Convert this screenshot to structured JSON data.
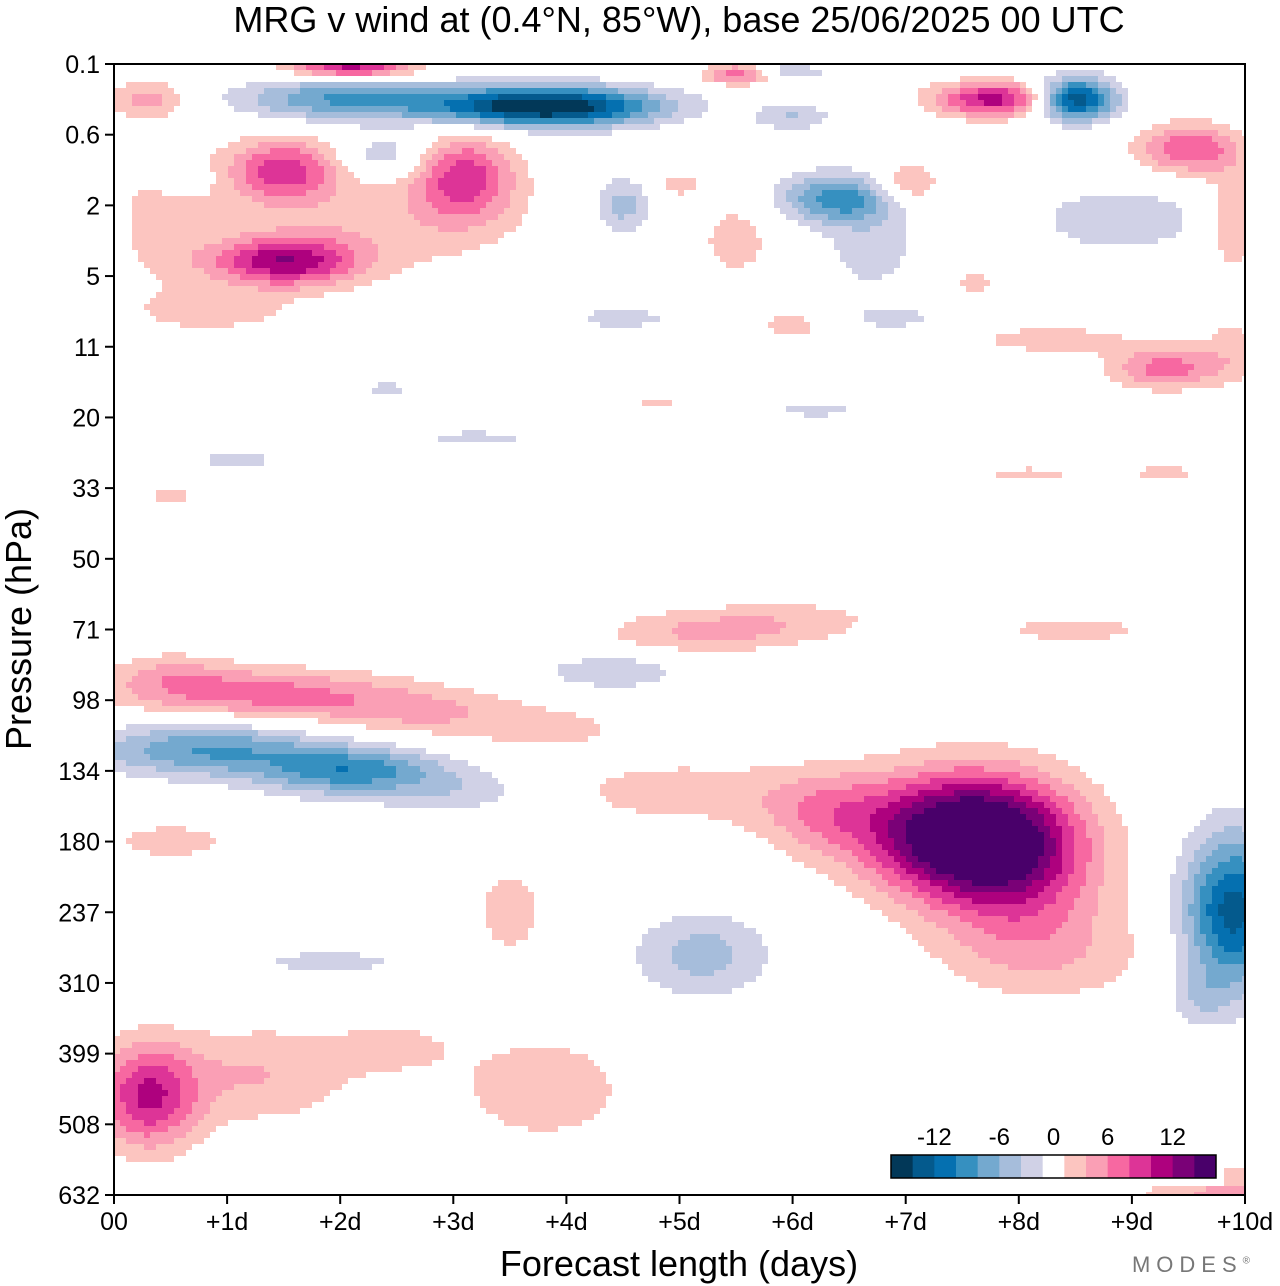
{
  "brand": "MODES",
  "brand_mark": "®",
  "chart_data": {
    "type": "heatmap",
    "title": "MRG v wind at (0.4°N, 85°W),  base 25/06/2025  00 UTC",
    "xlabel": "Forecast length (days)",
    "ylabel": "Pressure (hPa)",
    "x_ticks": [
      {
        "value": 0,
        "label": "00"
      },
      {
        "value": 1,
        "label": "+1d"
      },
      {
        "value": 2,
        "label": "+2d"
      },
      {
        "value": 3,
        "label": "+3d"
      },
      {
        "value": 4,
        "label": "+4d"
      },
      {
        "value": 5,
        "label": "+5d"
      },
      {
        "value": 6,
        "label": "+6d"
      },
      {
        "value": 7,
        "label": "+7d"
      },
      {
        "value": 8,
        "label": "+8d"
      },
      {
        "value": 9,
        "label": "+9d"
      },
      {
        "value": 10,
        "label": "+10d"
      }
    ],
    "y_ticks": [
      "0.1",
      "0.6",
      "2",
      "5",
      "11",
      "20",
      "33",
      "50",
      "71",
      "98",
      "134",
      "180",
      "237",
      "310",
      "399",
      "508",
      "632"
    ],
    "xlim": [
      0,
      10
    ],
    "ylim": [
      "0.1",
      "632"
    ],
    "colorbar": {
      "labels": [
        {
          "value": -12,
          "text": "-12"
        },
        {
          "value": -6,
          "text": "-6"
        },
        {
          "value": 0,
          "text": "0"
        },
        {
          "value": 6,
          "text": "6"
        },
        {
          "value": 12,
          "text": "12"
        }
      ],
      "levels": [
        -16,
        -14,
        -12,
        -10,
        -8,
        -6,
        -4,
        -2,
        2,
        4,
        6,
        8,
        10,
        12,
        14,
        16
      ],
      "colors": [
        "#023858",
        "#045a8d",
        "#0570b0",
        "#3690c0",
        "#74a9cf",
        "#a6bddb",
        "#d0d1e6",
        "#ffffff",
        "#fcc5c0",
        "#fa9fb5",
        "#f768a1",
        "#dd3497",
        "#ae017e",
        "#7a0177",
        "#49006a"
      ]
    },
    "features": [
      {
        "x": 7.5,
        "y": 10.9,
        "sx": 0.85,
        "sy": 0.85,
        "v": 17
      },
      {
        "x": 8.0,
        "y": 11.4,
        "sx": 0.75,
        "sy": 1.1,
        "v": 7
      },
      {
        "x": 6.3,
        "y": 10.6,
        "sx": 0.6,
        "sy": 0.6,
        "v": 5
      },
      {
        "x": 5.0,
        "y": 10.3,
        "sx": 1.2,
        "sy": 0.5,
        "v": 3
      },
      {
        "x": 8.3,
        "y": 12.6,
        "sx": 1.0,
        "sy": 0.7,
        "v": 3
      },
      {
        "x": 9.9,
        "y": 12.0,
        "sx": 0.45,
        "sy": 1.1,
        "v": -13
      },
      {
        "x": 9.6,
        "y": 13.2,
        "sx": 0.25,
        "sy": 0.4,
        "v": -3
      },
      {
        "x": 0.8,
        "y": 9.7,
        "sx": 1.0,
        "sy": 0.38,
        "v": -8
      },
      {
        "x": 2.1,
        "y": 10.0,
        "sx": 0.8,
        "sy": 0.35,
        "v": -9
      },
      {
        "x": 3.1,
        "y": 10.3,
        "sx": 0.7,
        "sy": 0.35,
        "v": -3
      },
      {
        "x": 1.2,
        "y": 8.9,
        "sx": 1.2,
        "sy": 0.35,
        "v": 7
      },
      {
        "x": 2.6,
        "y": 9.15,
        "sx": 0.9,
        "sy": 0.35,
        "v": 4
      },
      {
        "x": 3.8,
        "y": 9.4,
        "sx": 0.9,
        "sy": 0.35,
        "v": 2.5
      },
      {
        "x": 0.5,
        "y": 8.6,
        "sx": 0.5,
        "sy": 0.3,
        "v": 3
      },
      {
        "x": 4.4,
        "y": 8.6,
        "sx": 0.6,
        "sy": 0.25,
        "v": -4
      },
      {
        "x": 5.2,
        "y": 8.05,
        "sx": 0.9,
        "sy": 0.3,
        "v": 4
      },
      {
        "x": 6.0,
        "y": 7.85,
        "sx": 0.9,
        "sy": 0.3,
        "v": 2.5
      },
      {
        "x": 8.5,
        "y": 8.0,
        "sx": 1.0,
        "sy": 0.3,
        "v": 2.5
      },
      {
        "x": 0.3,
        "y": 14.6,
        "sx": 0.45,
        "sy": 0.75,
        "v": 10
      },
      {
        "x": 1.3,
        "y": 14.3,
        "sx": 0.8,
        "sy": 0.7,
        "v": 4
      },
      {
        "x": 3.8,
        "y": 14.5,
        "sx": 0.7,
        "sy": 0.7,
        "v": 4
      },
      {
        "x": 2.5,
        "y": 13.9,
        "sx": 0.6,
        "sy": 0.45,
        "v": 2.5
      },
      {
        "x": 5.2,
        "y": 12.6,
        "sx": 0.6,
        "sy": 0.6,
        "v": -5
      },
      {
        "x": 1.9,
        "y": 12.7,
        "sx": 1.0,
        "sy": 0.25,
        "v": -2.5
      },
      {
        "x": 0.5,
        "y": 11.0,
        "sx": 0.6,
        "sy": 0.3,
        "v": 3
      },
      {
        "x": 3.5,
        "y": 12.0,
        "sx": 0.35,
        "sy": 0.75,
        "v": 3
      },
      {
        "x": 9.9,
        "y": 16.1,
        "sx": 0.8,
        "sy": 0.5,
        "v": 5
      },
      {
        "x": 7.1,
        "y": 15.3,
        "sx": 0.25,
        "sy": 0.2,
        "v": -3
      },
      {
        "x": 3.8,
        "y": 0.6,
        "sx": 1.0,
        "sy": 0.28,
        "v": -17
      },
      {
        "x": 8.5,
        "y": 0.5,
        "sx": 0.35,
        "sy": 0.3,
        "v": -15
      },
      {
        "x": 2.0,
        "y": 0.5,
        "sx": 0.9,
        "sy": 0.3,
        "v": -8
      },
      {
        "x": 7.8,
        "y": 0.5,
        "sx": 0.55,
        "sy": 0.25,
        "v": 11
      },
      {
        "x": 2.1,
        "y": 0.05,
        "sx": 0.55,
        "sy": 0.15,
        "v": 11
      },
      {
        "x": 0.3,
        "y": 0.5,
        "sx": 0.35,
        "sy": 0.25,
        "v": 5
      },
      {
        "x": 5.5,
        "y": 0.15,
        "sx": 0.3,
        "sy": 0.15,
        "v": 7
      },
      {
        "x": 6.0,
        "y": 0.1,
        "sx": 0.3,
        "sy": 0.1,
        "v": -4
      },
      {
        "x": 6.0,
        "y": 0.75,
        "sx": 0.35,
        "sy": 0.2,
        "v": -4
      },
      {
        "x": 9.5,
        "y": 1.2,
        "sx": 0.45,
        "sy": 0.35,
        "v": 8
      },
      {
        "x": 1.5,
        "y": 1.5,
        "sx": 0.5,
        "sy": 0.45,
        "v": 9
      },
      {
        "x": 3.1,
        "y": 1.6,
        "sx": 0.45,
        "sy": 0.6,
        "v": 9
      },
      {
        "x": 1.5,
        "y": 2.8,
        "sx": 0.65,
        "sy": 0.35,
        "v": 11
      },
      {
        "x": 2.3,
        "y": 2.3,
        "sx": 1.3,
        "sy": 0.7,
        "v": 3
      },
      {
        "x": 0.4,
        "y": 2.2,
        "sx": 0.45,
        "sy": 1.1,
        "v": 2.5
      },
      {
        "x": 6.4,
        "y": 1.9,
        "sx": 0.5,
        "sy": 0.35,
        "v": -9
      },
      {
        "x": 6.7,
        "y": 2.6,
        "sx": 0.45,
        "sy": 0.7,
        "v": -3
      },
      {
        "x": 4.5,
        "y": 2.0,
        "sx": 0.25,
        "sy": 0.4,
        "v": -5
      },
      {
        "x": 2.4,
        "y": 1.3,
        "sx": 0.4,
        "sy": 0.3,
        "v": -4
      },
      {
        "x": 0.6,
        "y": 1.6,
        "sx": 0.25,
        "sy": 0.2,
        "v": -3
      },
      {
        "x": 8.9,
        "y": 2.2,
        "sx": 0.8,
        "sy": 0.5,
        "v": -3.5
      },
      {
        "x": 7.0,
        "y": 1.7,
        "sx": 0.3,
        "sy": 0.3,
        "v": 5
      },
      {
        "x": 5.5,
        "y": 2.5,
        "sx": 0.3,
        "sy": 0.5,
        "v": 3.5
      },
      {
        "x": 5.0,
        "y": 1.7,
        "sx": 0.2,
        "sy": 0.2,
        "v": 3
      },
      {
        "x": 9.9,
        "y": 2.2,
        "sx": 0.25,
        "sy": 0.8,
        "v": 4
      },
      {
        "x": 9.3,
        "y": 4.3,
        "sx": 0.5,
        "sy": 0.3,
        "v": 7
      },
      {
        "x": 9.9,
        "y": 4.0,
        "sx": 0.3,
        "sy": 0.5,
        "v": 2.5
      },
      {
        "x": 8.3,
        "y": 3.9,
        "sx": 0.7,
        "sy": 0.2,
        "v": 3.5
      },
      {
        "x": 6.0,
        "y": 3.7,
        "sx": 0.35,
        "sy": 0.2,
        "v": 3
      },
      {
        "x": 6.9,
        "y": 3.6,
        "sx": 0.5,
        "sy": 0.2,
        "v": -2.5
      },
      {
        "x": 4.5,
        "y": 3.6,
        "sx": 0.5,
        "sy": 0.18,
        "v": -3
      },
      {
        "x": 0.9,
        "y": 3.5,
        "sx": 0.7,
        "sy": 0.3,
        "v": 3
      },
      {
        "x": 7.6,
        "y": 3.1,
        "sx": 0.2,
        "sy": 0.2,
        "v": 3
      },
      {
        "x": 3.2,
        "y": 5.3,
        "sx": 0.7,
        "sy": 0.18,
        "v": -2.5
      },
      {
        "x": 1.1,
        "y": 5.6,
        "sx": 0.4,
        "sy": 0.18,
        "v": -3
      },
      {
        "x": 2.4,
        "y": 4.6,
        "sx": 0.3,
        "sy": 0.15,
        "v": -2.5
      },
      {
        "x": 6.2,
        "y": 4.9,
        "sx": 0.6,
        "sy": 0.15,
        "v": -2.5
      },
      {
        "x": 9.3,
        "y": 5.8,
        "sx": 0.4,
        "sy": 0.2,
        "v": 2.5
      },
      {
        "x": 0.5,
        "y": 6.1,
        "sx": 0.35,
        "sy": 0.18,
        "v": 2.5
      },
      {
        "x": 8.1,
        "y": 5.8,
        "sx": 0.6,
        "sy": 0.15,
        "v": 2.5
      },
      {
        "x": 4.8,
        "y": 4.8,
        "sx": 0.3,
        "sy": 0.15,
        "v": 2.5
      }
    ]
  }
}
